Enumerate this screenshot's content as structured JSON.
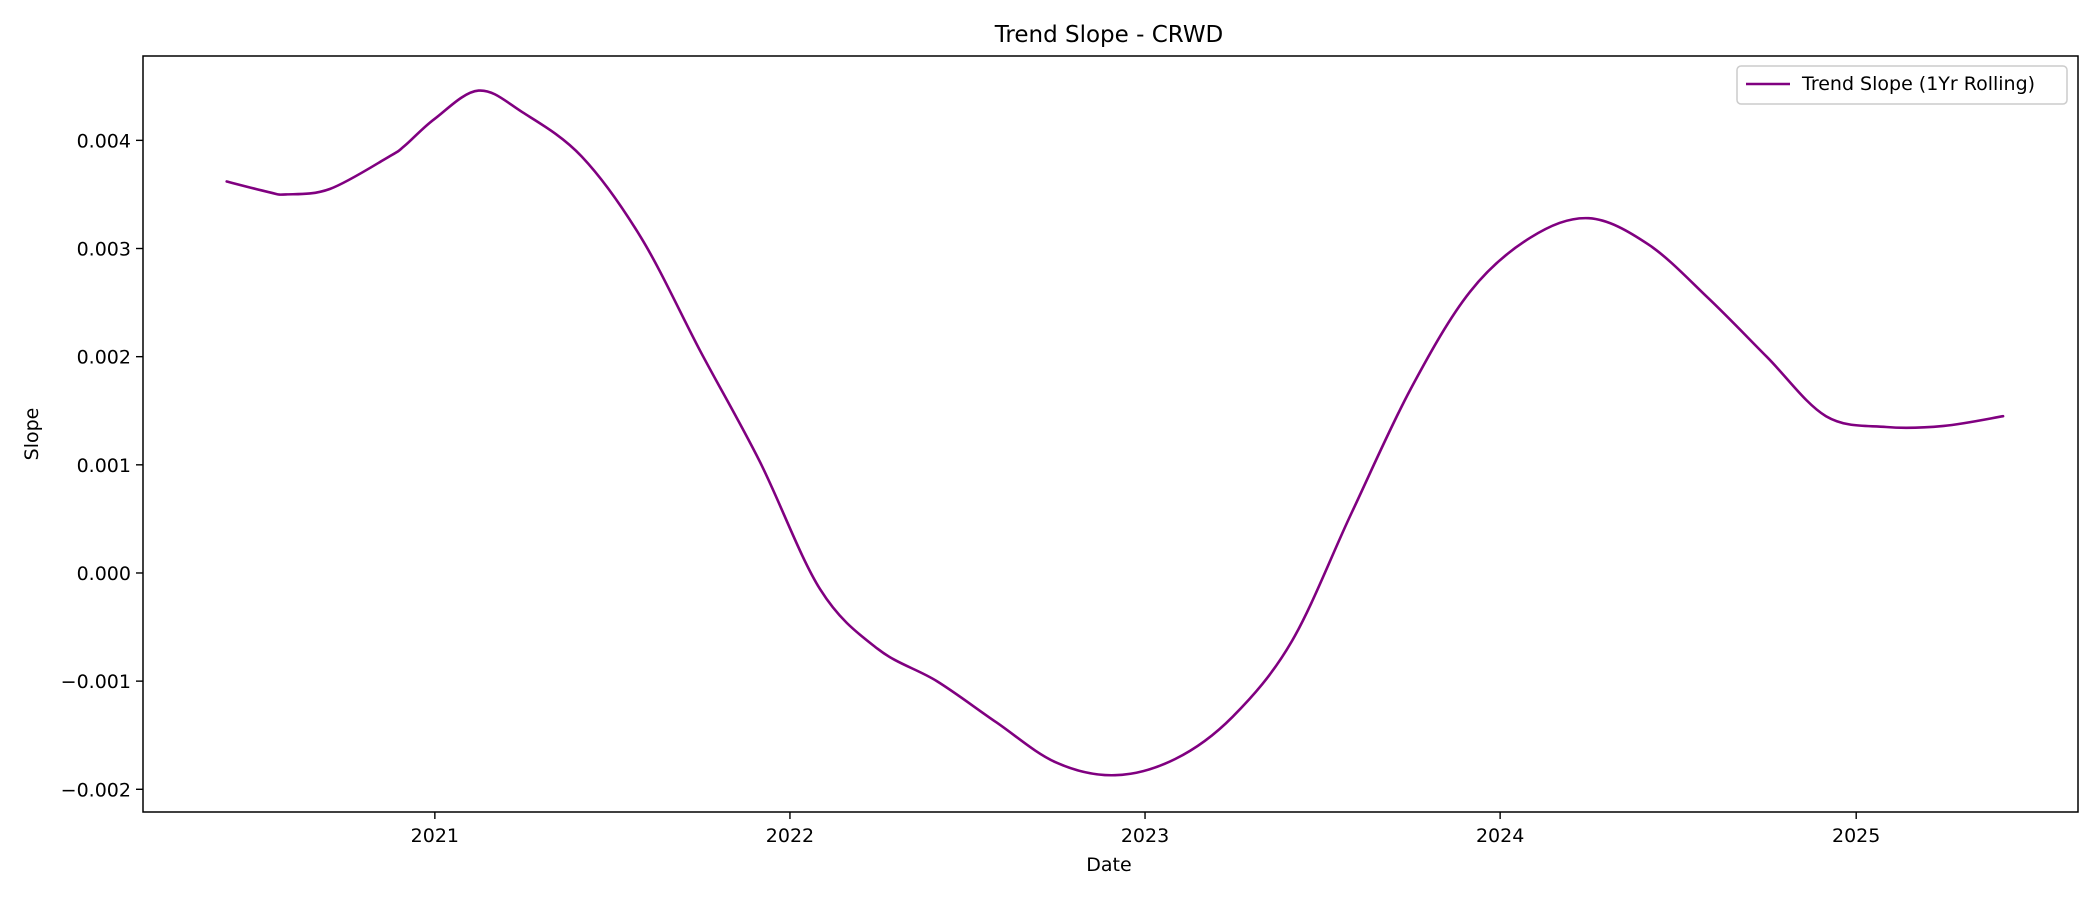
{
  "chart_data": {
    "type": "line",
    "title": "Trend Slope - CRWD",
    "xlabel": "Date",
    "ylabel": "Slope",
    "x_ticks": [
      "2021",
      "2022",
      "2023",
      "2024",
      "2025"
    ],
    "y_ticks": [
      "0.004",
      "0.003",
      "0.002",
      "0.001",
      "0.000",
      "−0.001",
      "−0.002"
    ],
    "y_tick_values": [
      0.004,
      0.003,
      0.002,
      0.001,
      0.0,
      -0.001,
      -0.002
    ],
    "xlim": [
      "2020-03-07",
      "2025-08-17"
    ],
    "ylim": [
      -0.00221,
      0.00478
    ],
    "grid": false,
    "legend_position": "top-right",
    "series": [
      {
        "name": "Trend Slope (1Yr Rolling)",
        "color": "#800080",
        "x": [
          "2020-06-01",
          "2020-07-15",
          "2020-08-01",
          "2020-09-15",
          "2020-11-15",
          "2020-12-01",
          "2021-01-01",
          "2021-02-15",
          "2021-04-01",
          "2021-06-01",
          "2021-08-01",
          "2021-10-01",
          "2021-12-01",
          "2022-02-01",
          "2022-04-01",
          "2022-06-01",
          "2022-08-01",
          "2022-10-01",
          "2022-12-01",
          "2023-02-01",
          "2023-04-01",
          "2023-06-01",
          "2023-08-01",
          "2023-10-01",
          "2023-12-01",
          "2024-02-01",
          "2024-04-01",
          "2024-06-01",
          "2024-08-01",
          "2024-10-01",
          "2024-12-01",
          "2025-02-01",
          "2025-04-01",
          "2025-06-01"
        ],
        "y": [
          0.00362,
          0.00352,
          0.0035,
          0.00355,
          0.00385,
          0.00395,
          0.0042,
          0.00446,
          0.00426,
          0.00385,
          0.0031,
          0.00205,
          0.00103,
          -0.00015,
          -0.0007,
          -0.001,
          -0.00138,
          -0.00175,
          -0.00187,
          -0.00172,
          -0.00133,
          -0.00063,
          0.00055,
          0.0017,
          0.0026,
          0.0031,
          0.00328,
          0.00304,
          0.00255,
          0.002,
          0.00145,
          0.00135,
          0.00136,
          0.00145
        ]
      }
    ]
  }
}
